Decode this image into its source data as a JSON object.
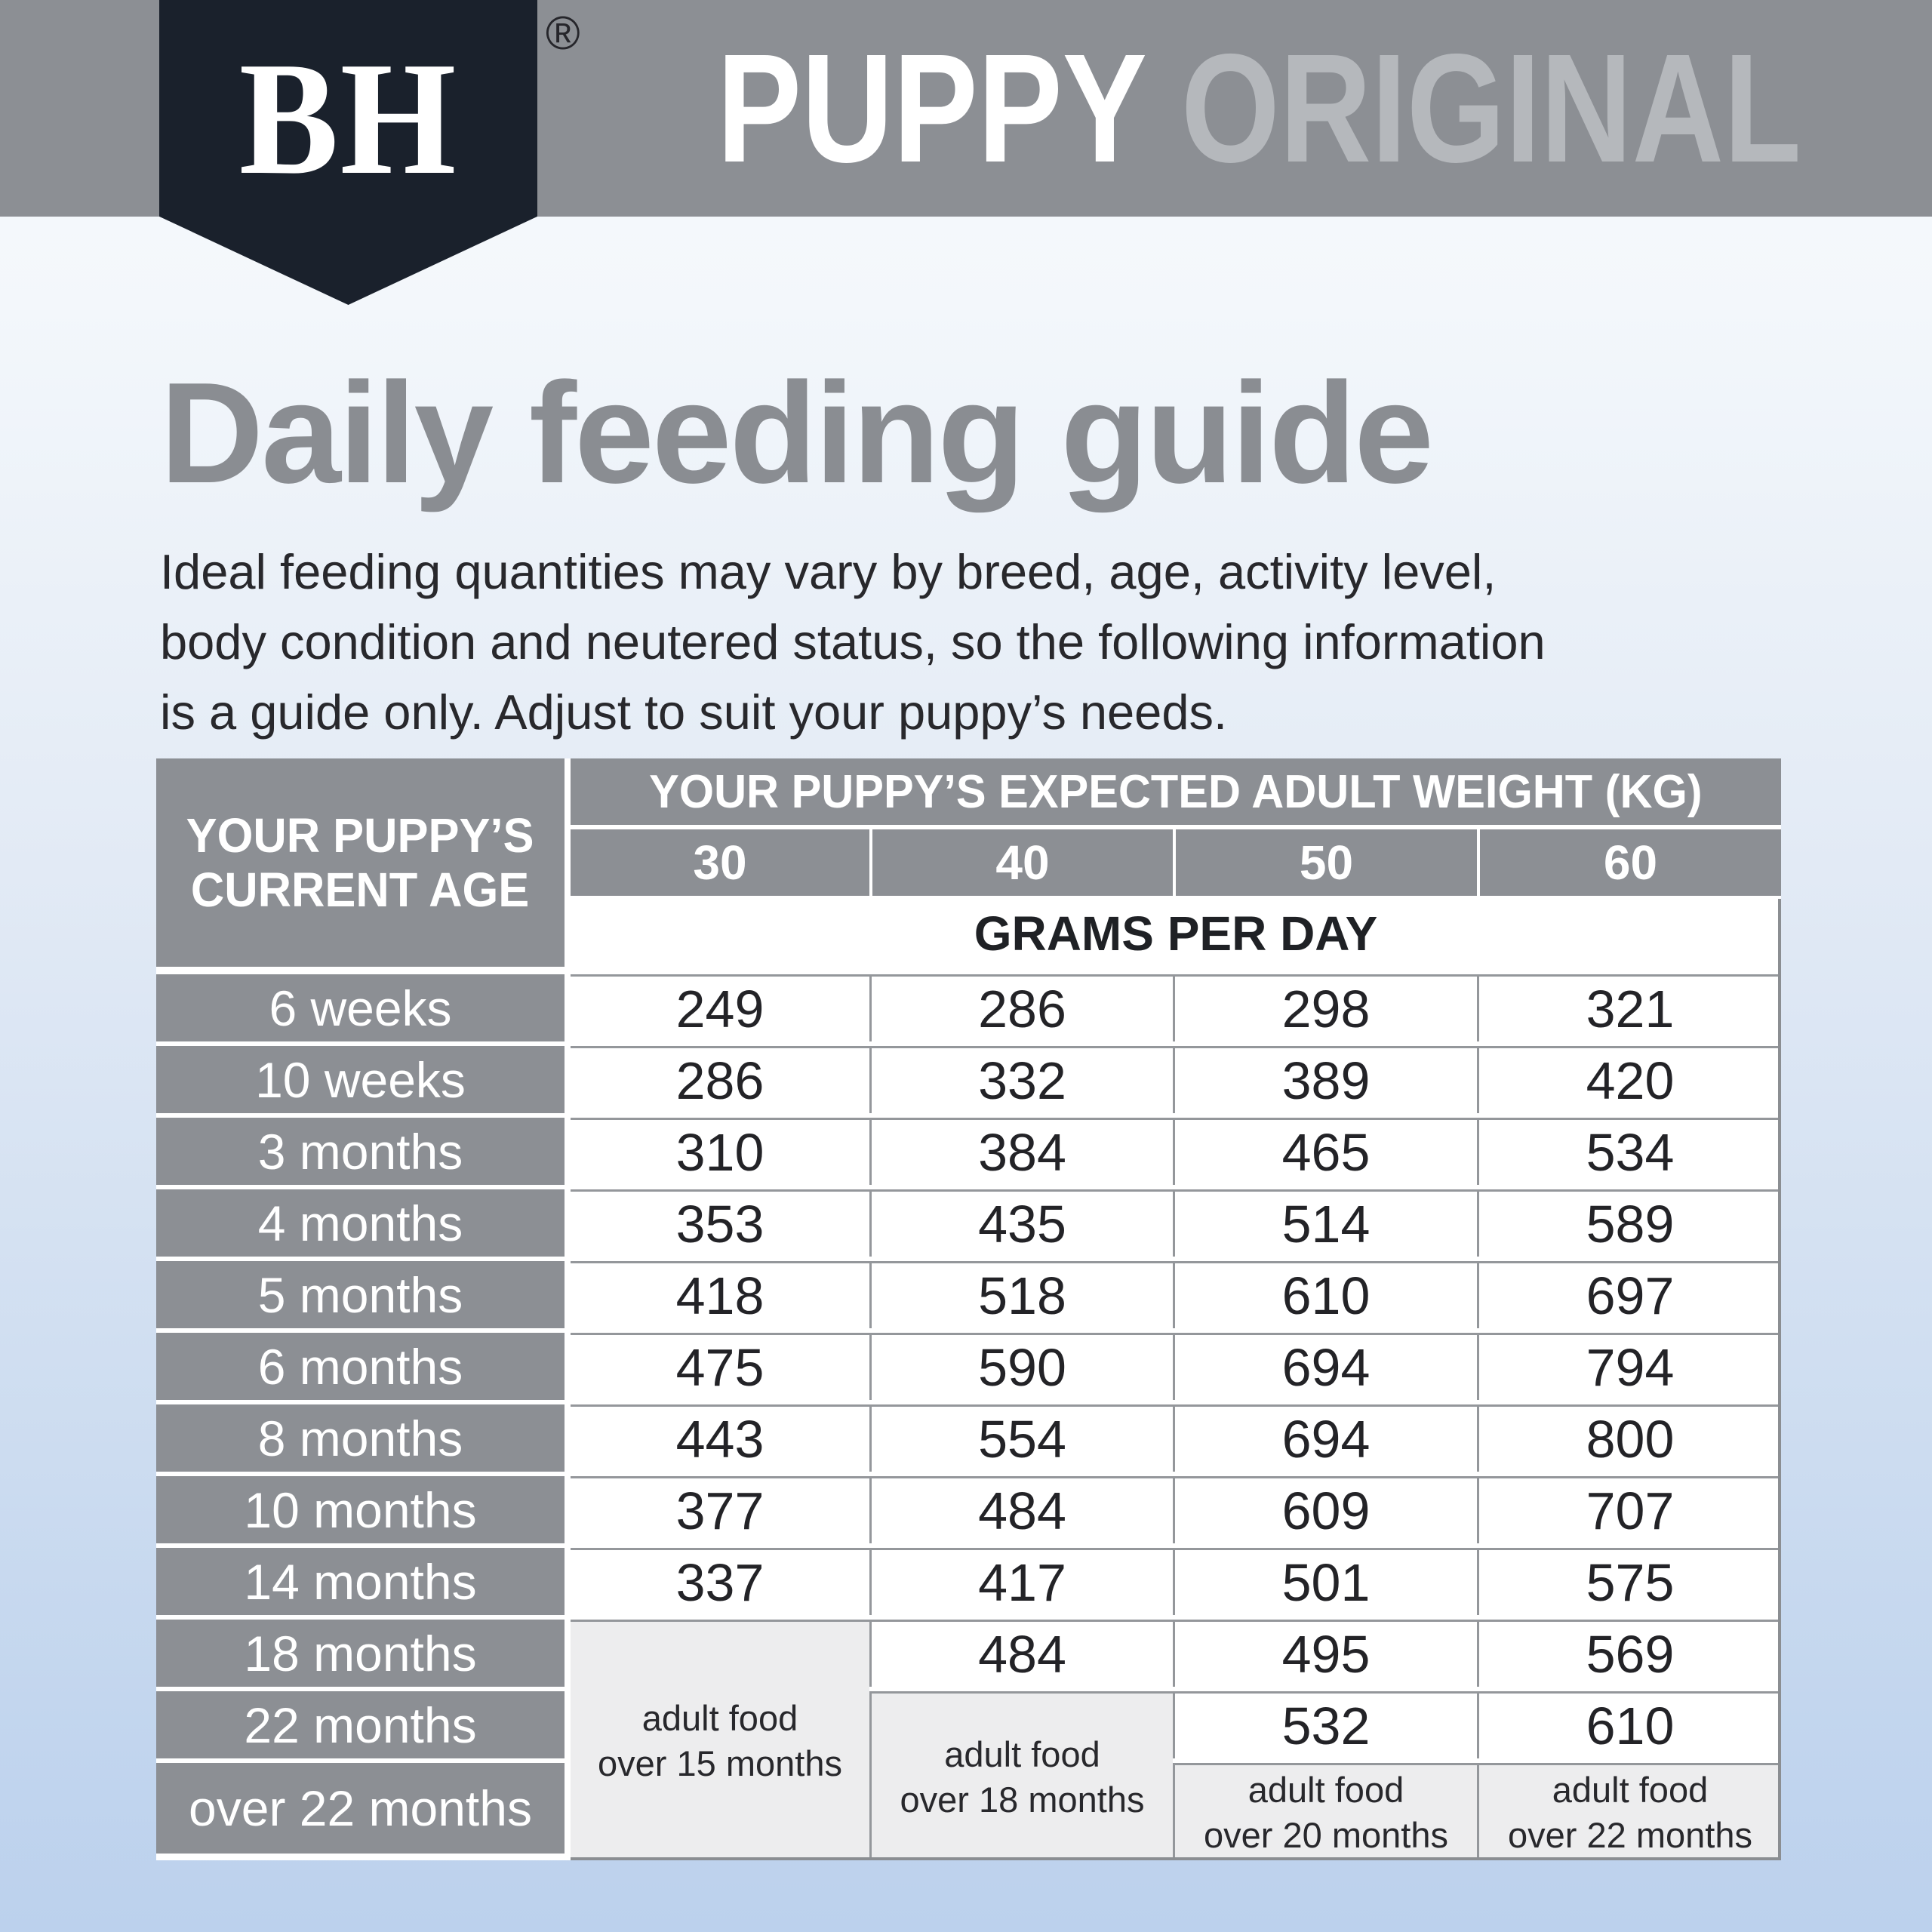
{
  "brand": {
    "logo": "BH",
    "registered": "®"
  },
  "masthead": {
    "product": "PUPPY",
    "variant": "ORIGINAL"
  },
  "page": {
    "title": "Daily feeding guide",
    "intro": "Ideal feeding quantities may vary by breed, age, activity level,\nbody condition and neutered status, so the following information\nis a guide only. Adjust to suit your puppy’s needs."
  },
  "table": {
    "corner_header": "YOUR PUPPY’S\nCURRENT AGE",
    "weight_header": "YOUR PUPPY’S EXPECTED ADULT WEIGHT (KG)",
    "weights": [
      "30",
      "40",
      "50",
      "60"
    ],
    "unit_header": "GRAMS PER DAY",
    "rows": [
      {
        "age": "6 weeks",
        "values": [
          "249",
          "286",
          "298",
          "321"
        ]
      },
      {
        "age": "10 weeks",
        "values": [
          "286",
          "332",
          "389",
          "420"
        ]
      },
      {
        "age": "3 months",
        "values": [
          "310",
          "384",
          "465",
          "534"
        ]
      },
      {
        "age": "4 months",
        "values": [
          "353",
          "435",
          "514",
          "589"
        ]
      },
      {
        "age": "5 months",
        "values": [
          "418",
          "518",
          "610",
          "697"
        ]
      },
      {
        "age": "6 months",
        "values": [
          "475",
          "590",
          "694",
          "794"
        ]
      },
      {
        "age": "8 months",
        "values": [
          "443",
          "554",
          "694",
          "800"
        ]
      },
      {
        "age": "10 months",
        "values": [
          "377",
          "484",
          "609",
          "707"
        ]
      },
      {
        "age": "14 months",
        "values": [
          "337",
          "417",
          "501",
          "575"
        ]
      },
      {
        "age": "18 months",
        "values": [
          null,
          "484",
          "495",
          "569"
        ]
      },
      {
        "age": "22 months",
        "values": [
          null,
          null,
          "532",
          "610"
        ]
      },
      {
        "age": "over 22 months",
        "values": [
          null,
          null,
          null,
          null
        ]
      }
    ],
    "merged_notes": [
      {
        "column": "30",
        "text": "adult food\nover 15 months",
        "starts_at": "18 months"
      },
      {
        "column": "40",
        "text": "adult food\nover 18 months",
        "starts_at": "22 months"
      },
      {
        "column": "50",
        "text": "adult food\nover 20 months",
        "starts_at": "over 22 months"
      },
      {
        "column": "60",
        "text": "adult food\nover 22 months",
        "starts_at": "over 22 months"
      }
    ]
  },
  "colors": {
    "band_gray": "#8c8f94",
    "badge_navy": "#1a212c",
    "variant_gray": "#b5b8bc",
    "title_gray": "#8a8d92",
    "text_dark": "#28282c",
    "cell_border": "#94979b",
    "merged_cell_bg": "#ededee",
    "page_bottom_blue": "#bcd1ed"
  }
}
